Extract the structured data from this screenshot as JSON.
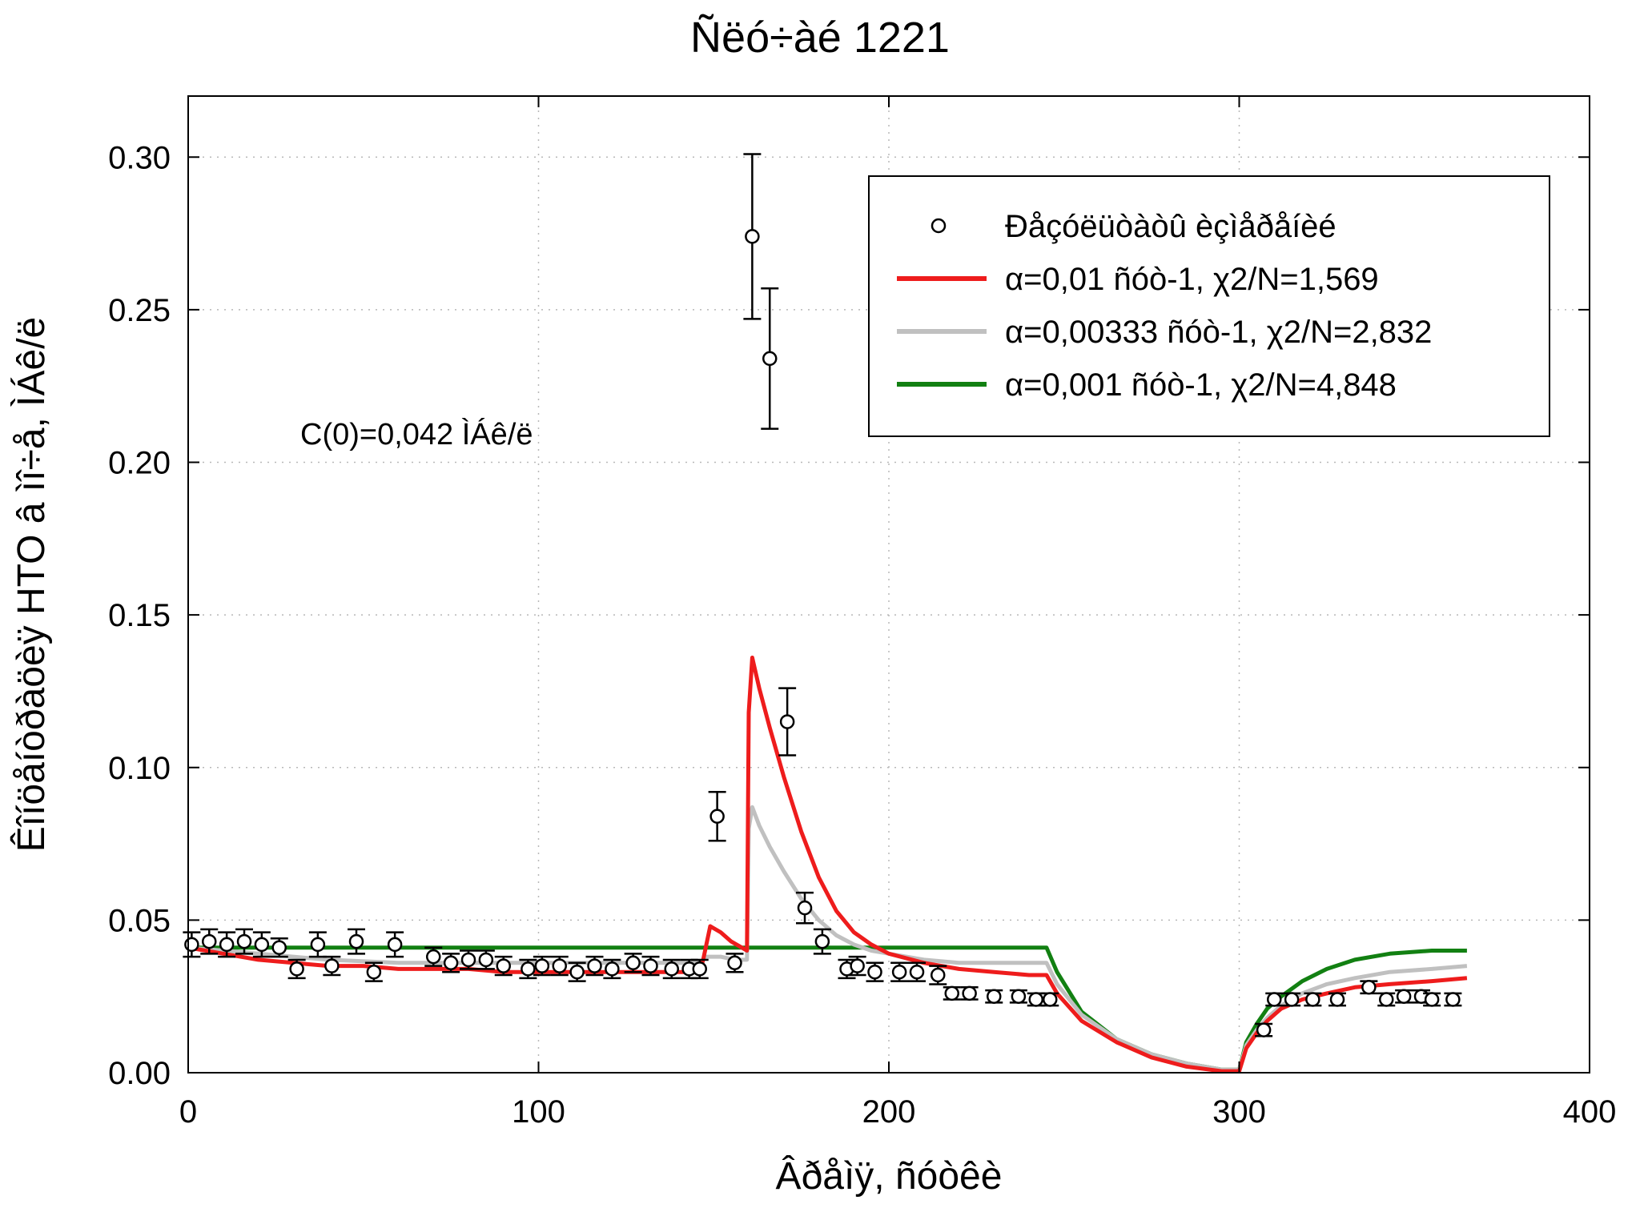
{
  "chart_data": {
    "type": "scatter",
    "title": "Ñëó÷àé 1221",
    "xlabel": "Âðåìÿ, ñóòêè",
    "ylabel": "Êîíöåíòðàöèÿ HTO â ìî÷å, ÌÁê/ë",
    "xlim": [
      0,
      400
    ],
    "ylim": [
      0,
      0.32
    ],
    "x_ticks": [
      "0",
      "100",
      "200",
      "300",
      "400"
    ],
    "y_ticks": [
      "0.00",
      "0.05",
      "0.10",
      "0.15",
      "0.20",
      "0.25",
      "0.30"
    ],
    "grid": true,
    "legend_position": "top-right",
    "annotation": "C(0)=0,042 ÌÁê/ë",
    "legend": [
      {
        "label": "Ðåçóëüòàòû èçìåðåíèé",
        "marker": "circle",
        "color": "#000000"
      },
      {
        "label": "α=0,01 ñóò-1, χ2/N=1,569",
        "color": "#ee1c1c"
      },
      {
        "label": "α=0,00333 ñóò-1, χ2/N=2,832",
        "color": "#c0c0c0"
      },
      {
        "label": "α=0,001 ñóò-1, χ2/N=4,848",
        "color": "#128012"
      }
    ],
    "measurements": {
      "x": [
        1,
        6,
        11,
        16,
        21,
        26,
        31,
        37,
        41,
        48,
        53,
        59,
        70,
        75,
        80,
        85,
        90,
        97,
        101,
        106,
        111,
        116,
        121,
        127,
        132,
        138,
        143,
        146,
        151,
        156,
        161,
        166,
        171,
        176,
        181,
        188,
        191,
        196,
        203,
        208,
        214,
        218,
        223,
        230,
        237,
        242,
        246,
        307,
        310,
        315,
        321,
        328,
        337,
        342,
        347,
        352,
        355,
        361
      ],
      "y": [
        0.042,
        0.043,
        0.042,
        0.043,
        0.042,
        0.041,
        0.034,
        0.042,
        0.035,
        0.043,
        0.033,
        0.042,
        0.038,
        0.036,
        0.037,
        0.037,
        0.035,
        0.034,
        0.035,
        0.035,
        0.033,
        0.035,
        0.034,
        0.036,
        0.035,
        0.034,
        0.034,
        0.034,
        0.084,
        0.036,
        0.274,
        0.234,
        0.115,
        0.054,
        0.043,
        0.034,
        0.035,
        0.033,
        0.033,
        0.033,
        0.032,
        0.026,
        0.026,
        0.025,
        0.025,
        0.024,
        0.024,
        0.014,
        0.024,
        0.024,
        0.024,
        0.024,
        0.028,
        0.024,
        0.025,
        0.025,
        0.024,
        0.024
      ],
      "err": [
        0.004,
        0.004,
        0.004,
        0.004,
        0.004,
        0.003,
        0.003,
        0.004,
        0.003,
        0.004,
        0.003,
        0.004,
        0.003,
        0.003,
        0.003,
        0.003,
        0.003,
        0.003,
        0.003,
        0.003,
        0.003,
        0.003,
        0.003,
        0.003,
        0.003,
        0.003,
        0.003,
        0.003,
        0.008,
        0.003,
        0.027,
        0.023,
        0.011,
        0.005,
        0.004,
        0.003,
        0.003,
        0.003,
        0.003,
        0.003,
        0.003,
        0.002,
        0.002,
        0.002,
        0.002,
        0.002,
        0.002,
        0.002,
        0.002,
        0.002,
        0.002,
        0.002,
        0.002,
        0.002,
        0.002,
        0.002,
        0.002,
        0.002
      ]
    },
    "series": [
      {
        "name": "α=0,01 ñóò-1, χ2/N=1,569",
        "color": "#ee1c1c",
        "x": [
          0,
          10,
          20,
          30,
          40,
          50,
          60,
          70,
          80,
          90,
          100,
          110,
          120,
          130,
          140,
          146,
          147,
          149,
          152,
          155,
          158,
          159.5,
          160,
          161,
          163,
          166,
          170,
          175,
          180,
          185,
          190,
          195,
          200,
          210,
          220,
          230,
          240,
          245,
          248,
          255,
          265,
          275,
          285,
          295,
          300,
          302,
          305,
          308,
          312,
          318,
          325,
          333,
          343,
          355,
          365
        ],
        "y": [
          0.041,
          0.039,
          0.037,
          0.036,
          0.035,
          0.035,
          0.034,
          0.034,
          0.034,
          0.033,
          0.033,
          0.033,
          0.033,
          0.033,
          0.033,
          0.033,
          0.037,
          0.048,
          0.046,
          0.043,
          0.041,
          0.04,
          0.118,
          0.136,
          0.126,
          0.113,
          0.097,
          0.079,
          0.064,
          0.053,
          0.046,
          0.042,
          0.039,
          0.036,
          0.034,
          0.033,
          0.032,
          0.032,
          0.026,
          0.017,
          0.01,
          0.005,
          0.002,
          0.0005,
          0.0005,
          0.008,
          0.013,
          0.017,
          0.021,
          0.024,
          0.026,
          0.028,
          0.029,
          0.03,
          0.031
        ]
      },
      {
        "name": "α=0,00333 ñóò-1, χ2/N=2,832",
        "color": "#c0c0c0",
        "x": [
          0,
          20,
          40,
          60,
          80,
          100,
          120,
          140,
          146,
          148,
          152,
          156,
          159.5,
          160,
          161,
          163,
          166,
          170,
          175,
          180,
          185,
          190,
          195,
          200,
          210,
          220,
          230,
          240,
          245,
          248,
          255,
          265,
          275,
          285,
          295,
          300,
          302,
          305,
          308,
          312,
          318,
          325,
          333,
          343,
          355,
          365
        ],
        "y": [
          0.041,
          0.039,
          0.037,
          0.036,
          0.036,
          0.036,
          0.036,
          0.036,
          0.036,
          0.038,
          0.038,
          0.037,
          0.037,
          0.08,
          0.087,
          0.081,
          0.074,
          0.066,
          0.057,
          0.05,
          0.045,
          0.042,
          0.04,
          0.039,
          0.037,
          0.036,
          0.036,
          0.036,
          0.036,
          0.029,
          0.019,
          0.011,
          0.006,
          0.003,
          0.001,
          0.001,
          0.009,
          0.014,
          0.018,
          0.022,
          0.026,
          0.029,
          0.031,
          0.033,
          0.034,
          0.035
        ]
      },
      {
        "name": "α=0,001 ñóò-1, χ2/N=4,848",
        "color": "#128012",
        "x": [
          0,
          20,
          40,
          60,
          80,
          100,
          120,
          140,
          160,
          180,
          200,
          220,
          240,
          245,
          248,
          255,
          265,
          275,
          285,
          295,
          300,
          302,
          305,
          308,
          312,
          318,
          325,
          333,
          343,
          355,
          365
        ],
        "y": [
          0.041,
          0.041,
          0.041,
          0.041,
          0.041,
          0.041,
          0.041,
          0.041,
          0.041,
          0.041,
          0.041,
          0.041,
          0.041,
          0.041,
          0.033,
          0.02,
          0.011,
          0.006,
          0.003,
          0.001,
          0.001,
          0.01,
          0.016,
          0.021,
          0.025,
          0.03,
          0.034,
          0.037,
          0.039,
          0.04,
          0.04
        ]
      }
    ]
  }
}
